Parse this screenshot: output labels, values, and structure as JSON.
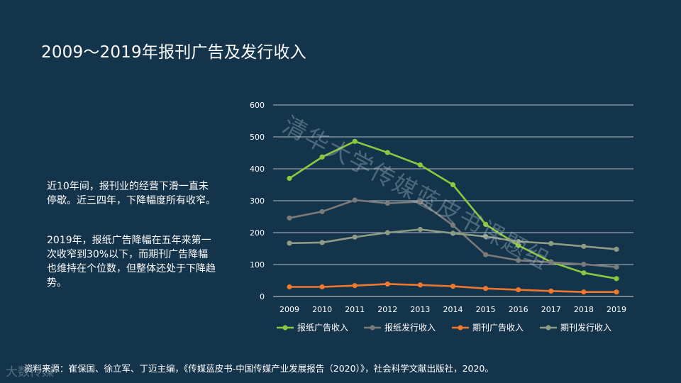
{
  "title": "2009～2019年报刊广告及发行收入",
  "paragraphs": [
    "近10年间，报刊业的经营下滑一直未停歇。近三四年，下降幅度所有收窄。",
    "2019年，报纸广告降幅在五年来第一次收窄到30%以下，而期刊广告降幅也维持在个位数，但整体还处于下降趋势。"
  ],
  "source": "资料来源：崔保国、徐立军、丁迈主编，《传媒蓝皮书-中国传媒产业发展报告（2020）》，社会科学文献出版社，2020。",
  "watermark": "清华大学传媒蓝皮书课题组",
  "brand": "大数传媒",
  "chart_data": {
    "type": "line",
    "x": [
      "2009",
      "2010",
      "2011",
      "2012",
      "2013",
      "2014",
      "2015",
      "2016",
      "2017",
      "2018",
      "2019"
    ],
    "yticks": [
      "0",
      "100",
      "200",
      "300",
      "400",
      "500",
      "600"
    ],
    "ylim": [
      0,
      600
    ],
    "grid": true,
    "legend_position": "bottom",
    "series": [
      {
        "name": "报纸广告收入",
        "color": "#8dc63f",
        "values": [
          370,
          437,
          486,
          451,
          412,
          350,
          226,
          160,
          108,
          74,
          56
        ]
      },
      {
        "name": "报纸发行收入",
        "color": "#7a7a7a",
        "values": [
          246,
          266,
          302,
          292,
          297,
          223,
          131,
          113,
          107,
          101,
          92
        ]
      },
      {
        "name": "期刊广告收入",
        "color": "#f0782c",
        "values": [
          30,
          30,
          34,
          39,
          36,
          32,
          25,
          21,
          17,
          14,
          14
        ]
      },
      {
        "name": "期刊发行收入",
        "color": "#8e9c86",
        "values": [
          167,
          169,
          186,
          200,
          210,
          198,
          188,
          172,
          166,
          157,
          148
        ]
      }
    ]
  }
}
